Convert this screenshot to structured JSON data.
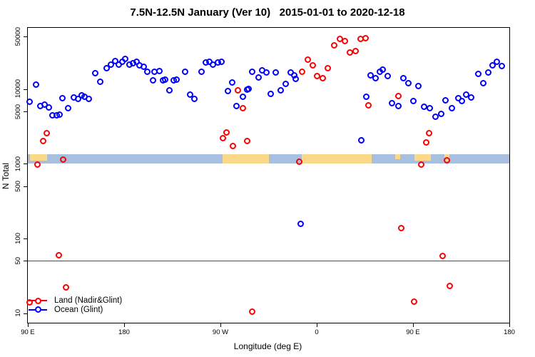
{
  "title": "7.5N-12.5N January (Ver 10)   2015-01-01 to 2020-12-18",
  "chart_data": {
    "type": "scatter",
    "title": "7.5N-12.5N January (Ver 10)   2015-01-01 to 2020-12-18",
    "xlabel": "Longitude (deg E)",
    "ylabel": "N Total",
    "x_axis": {
      "note": "axis spans 450 deg of longitude starting at 90E and wrapping past 180 twice",
      "min": 0,
      "max": 450,
      "ticks": [
        {
          "pos": 0,
          "label": "90 E"
        },
        {
          "pos": 90,
          "label": "180"
        },
        {
          "pos": 180,
          "label": "90 W"
        },
        {
          "pos": 270,
          "label": "0"
        },
        {
          "pos": 360,
          "label": "90 E"
        },
        {
          "pos": 450,
          "label": "180"
        }
      ]
    },
    "y_axis": {
      "scale": "log10",
      "ticks": [
        50000,
        10000,
        5000,
        1000,
        500,
        100,
        50,
        10
      ],
      "log_top": 4.818,
      "log_bottom": 0.871
    },
    "ref_line_y": 50,
    "grid": "off",
    "legend_position": "bottom-left",
    "map_band": {
      "value_range": [
        1010,
        1350
      ],
      "ocean_color": "#A9BFDF",
      "land_color": "#FBD98B",
      "land_segments": [
        {
          "from": 2,
          "to": 18,
          "h": 0.75
        },
        {
          "from": 182,
          "to": 225.3,
          "h": 1
        },
        {
          "from": 256,
          "to": 321.3,
          "h": 1
        },
        {
          "from": 343.3,
          "to": 348,
          "h": 0.6
        },
        {
          "from": 361.3,
          "to": 376.7,
          "h": 0.75
        },
        {
          "from": 389.3,
          "to": 394,
          "h": 0.8
        }
      ]
    },
    "series": [
      {
        "name": "Ocean (Glint)",
        "color": "#0000FF",
        "points": [
          [
            2,
            6700
          ],
          [
            8,
            11400
          ],
          [
            12,
            5890
          ],
          [
            16,
            6160
          ],
          [
            20,
            5640
          ],
          [
            23.3,
            4430
          ],
          [
            27.3,
            4430
          ],
          [
            29.7,
            4520
          ],
          [
            32.7,
            7510
          ],
          [
            38,
            5520
          ],
          [
            43.3,
            7680
          ],
          [
            47.3,
            7350
          ],
          [
            50.7,
            8200
          ],
          [
            53.3,
            7850
          ],
          [
            57.3,
            7350
          ],
          [
            63.3,
            16200
          ],
          [
            68,
            12500
          ],
          [
            74,
            18900
          ],
          [
            78,
            21200
          ],
          [
            82,
            23600
          ],
          [
            85.3,
            21200
          ],
          [
            88.7,
            23100
          ],
          [
            91.3,
            25200
          ],
          [
            95.3,
            21200
          ],
          [
            98.7,
            22100
          ],
          [
            102,
            23100
          ],
          [
            104.7,
            20700
          ],
          [
            108.7,
            19800
          ],
          [
            112,
            17000
          ],
          [
            117.3,
            13000
          ],
          [
            118.7,
            17000
          ],
          [
            123.3,
            17400
          ],
          [
            126.7,
            13000
          ],
          [
            128.7,
            13300
          ],
          [
            132.7,
            9570
          ],
          [
            136.7,
            13000
          ],
          [
            139.3,
            13300
          ],
          [
            147.3,
            17000
          ],
          [
            152,
            8380
          ],
          [
            156,
            7350
          ],
          [
            162.7,
            17000
          ],
          [
            166.7,
            22600
          ],
          [
            170,
            23100
          ],
          [
            173.3,
            21200
          ],
          [
            178,
            22600
          ],
          [
            181.3,
            23100
          ],
          [
            187.3,
            9360
          ],
          [
            191.3,
            12200
          ],
          [
            195.3,
            5890
          ],
          [
            201.3,
            7850
          ],
          [
            205.3,
            9780
          ],
          [
            206.7,
            10000
          ],
          [
            210,
            17000
          ],
          [
            216,
            14200
          ],
          [
            219,
            17700
          ],
          [
            223.3,
            16600
          ],
          [
            227.3,
            8570
          ],
          [
            232,
            16600
          ],
          [
            236.7,
            9570
          ],
          [
            241.3,
            11700
          ],
          [
            246,
            16600
          ],
          [
            249.3,
            15200
          ],
          [
            250.7,
            13600
          ],
          [
            255.3,
            155
          ],
          [
            312,
            2050
          ],
          [
            316.7,
            7850
          ],
          [
            320.7,
            15200
          ],
          [
            325.3,
            13900
          ],
          [
            329.3,
            17000
          ],
          [
            332,
            18100
          ],
          [
            336.7,
            14900
          ],
          [
            340.7,
            6440
          ],
          [
            346.7,
            5890
          ],
          [
            351.3,
            13900
          ],
          [
            356,
            11900
          ],
          [
            360.7,
            6870
          ],
          [
            365.3,
            10900
          ],
          [
            370.7,
            5770
          ],
          [
            376,
            5520
          ],
          [
            381.3,
            4230
          ],
          [
            386.7,
            4620
          ],
          [
            390.7,
            7030
          ],
          [
            396.7,
            5520
          ],
          [
            402.7,
            7510
          ],
          [
            406,
            6870
          ],
          [
            410,
            8380
          ],
          [
            414.7,
            7680
          ],
          [
            421.3,
            15900
          ],
          [
            426,
            11900
          ],
          [
            430.7,
            16600
          ],
          [
            434.7,
            20700
          ],
          [
            438.7,
            23100
          ],
          [
            443.3,
            20200
          ]
        ]
      },
      {
        "name": "Land (Nadir&Glint)",
        "color": "#FF0000",
        "points": [
          [
            2,
            14
          ],
          [
            9.3,
            970
          ],
          [
            14.7,
            2000
          ],
          [
            18,
            2550
          ],
          [
            29.3,
            59
          ],
          [
            33.3,
            1130
          ],
          [
            36,
            22
          ],
          [
            182.7,
            2190
          ],
          [
            186,
            2610
          ],
          [
            192,
            1710
          ],
          [
            196.7,
            9570
          ],
          [
            201.3,
            5520
          ],
          [
            205.3,
            2000
          ],
          [
            210,
            10.3
          ],
          [
            254,
            1060
          ],
          [
            256.7,
            17000
          ],
          [
            262,
            24700
          ],
          [
            266.7,
            20700
          ],
          [
            270.7,
            14900
          ],
          [
            276,
            13900
          ],
          [
            280.7,
            18900
          ],
          [
            286.7,
            38400
          ],
          [
            292,
            46800
          ],
          [
            296.7,
            43800
          ],
          [
            301.3,
            30800
          ],
          [
            306.7,
            32100
          ],
          [
            311.3,
            46800
          ],
          [
            316,
            47800
          ],
          [
            318.7,
            6030
          ],
          [
            346.7,
            8020
          ],
          [
            349.3,
            136
          ],
          [
            361.3,
            14.1
          ],
          [
            368,
            970
          ],
          [
            372.7,
            1920
          ],
          [
            375.3,
            2550
          ],
          [
            388,
            58
          ],
          [
            392,
            1100
          ],
          [
            394.7,
            23
          ]
        ]
      }
    ]
  },
  "legend": {
    "land_label": "Land (Nadir&Glint)",
    "ocean_label": "Ocean (Glint)"
  }
}
